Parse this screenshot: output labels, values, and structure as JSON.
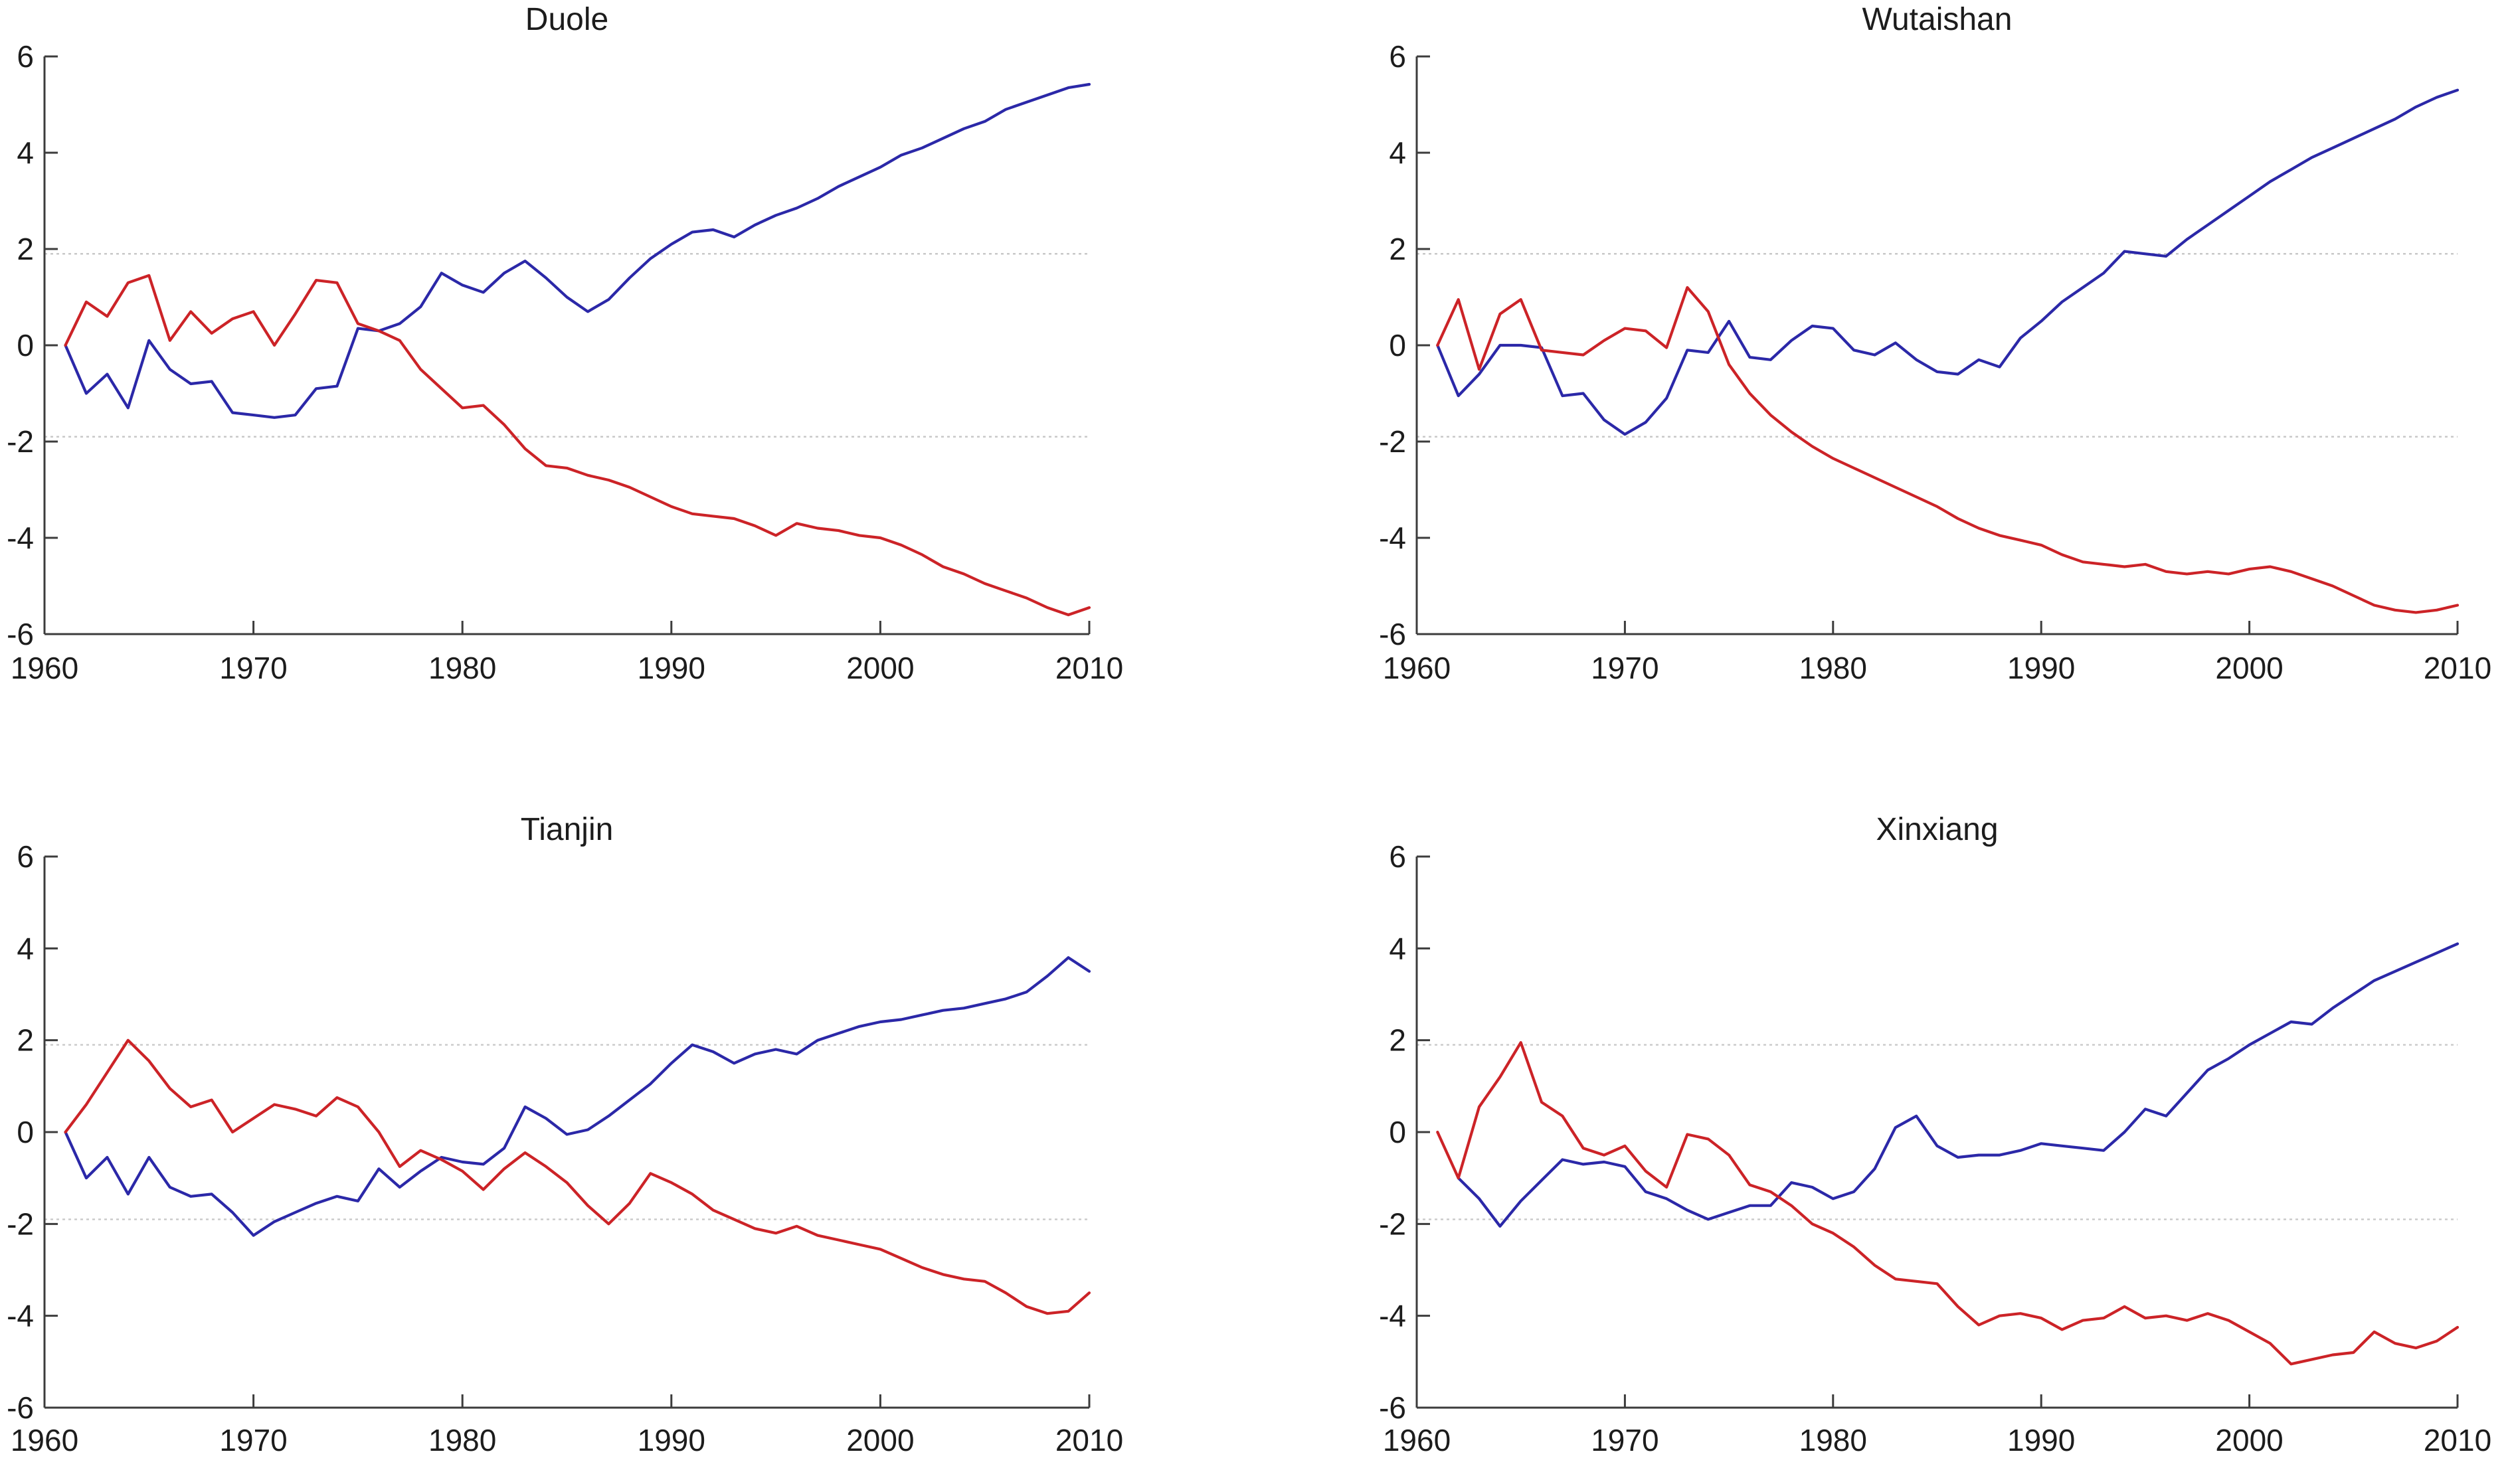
{
  "theme": {
    "background": "#ffffff",
    "blue": "#2b28a8",
    "red": "#cc2327",
    "grid_color": "#c9c9c9",
    "axis_color": "#3c3c3c",
    "text_color": "#1c1c1c"
  },
  "axes": {
    "x_tick_labels": [
      "1960",
      "1970",
      "1980",
      "1990",
      "2000",
      "2010"
    ],
    "x_tick_values": [
      1960,
      1970,
      1980,
      1990,
      2000,
      2010
    ],
    "y_tick_labels": [
      "-6",
      "-4",
      "-2",
      "0",
      "2",
      "4",
      "6"
    ],
    "y_tick_values": [
      -6,
      -4,
      -2,
      0,
      2,
      4,
      6
    ],
    "xlim": [
      1960,
      2010
    ],
    "ylim": [
      -6,
      6
    ],
    "reference_lines": [
      1.9,
      -1.9
    ]
  },
  "chart_data": [
    {
      "type": "line",
      "title": "Duole",
      "xlabel": "",
      "ylabel": "",
      "xlim": [
        1960,
        2010
      ],
      "ylim": [
        -6,
        6
      ],
      "grid": false,
      "reference_lines": [
        1.9,
        -1.9
      ],
      "x": [
        1961,
        1962,
        1963,
        1964,
        1965,
        1966,
        1967,
        1968,
        1969,
        1970,
        1971,
        1972,
        1973,
        1974,
        1975,
        1976,
        1977,
        1978,
        1979,
        1980,
        1981,
        1982,
        1983,
        1984,
        1985,
        1986,
        1987,
        1988,
        1989,
        1990,
        1991,
        1992,
        1993,
        1994,
        1995,
        1996,
        1997,
        1998,
        1999,
        2000,
        2001,
        2002,
        2003,
        2004,
        2005,
        2006,
        2007,
        2008,
        2009,
        2010
      ],
      "series": [
        {
          "name": "blue",
          "color": "#2b28a8",
          "values": [
            0,
            -1.0,
            -0.6,
            -1.3,
            0.1,
            -0.5,
            -0.8,
            -0.75,
            -1.4,
            -1.45,
            -1.5,
            -1.45,
            -0.9,
            -0.85,
            0.35,
            0.3,
            0.45,
            0.8,
            1.5,
            1.25,
            1.1,
            1.5,
            1.75,
            1.4,
            1.0,
            0.7,
            0.95,
            1.4,
            1.8,
            2.1,
            2.35,
            2.4,
            2.25,
            2.5,
            2.7,
            2.85,
            3.05,
            3.3,
            3.5,
            3.7,
            3.95,
            4.1,
            4.3,
            4.5,
            4.65,
            4.9,
            5.05,
            5.2,
            5.35,
            5.42
          ]
        },
        {
          "name": "red",
          "color": "#cc2327",
          "values": [
            0,
            0.9,
            0.6,
            1.3,
            1.45,
            0.1,
            0.7,
            0.25,
            0.55,
            0.7,
            0.0,
            0.65,
            1.35,
            1.3,
            0.45,
            0.3,
            0.1,
            -0.5,
            -0.9,
            -1.3,
            -1.25,
            -1.65,
            -2.15,
            -2.5,
            -2.55,
            -2.7,
            -2.8,
            -2.95,
            -3.15,
            -3.35,
            -3.5,
            -3.55,
            -3.6,
            -3.75,
            -3.95,
            -3.7,
            -3.8,
            -3.85,
            -3.95,
            -4.0,
            -4.15,
            -4.35,
            -4.6,
            -4.75,
            -4.95,
            -5.1,
            -5.25,
            -5.45,
            -5.6,
            -5.45
          ]
        }
      ]
    },
    {
      "type": "line",
      "title": "Wutaishan",
      "xlabel": "",
      "ylabel": "",
      "xlim": [
        1960,
        2010
      ],
      "ylim": [
        -6,
        6
      ],
      "grid": false,
      "reference_lines": [
        1.9,
        -1.9
      ],
      "x": [
        1961,
        1962,
        1963,
        1964,
        1965,
        1966,
        1967,
        1968,
        1969,
        1970,
        1971,
        1972,
        1973,
        1974,
        1975,
        1976,
        1977,
        1978,
        1979,
        1980,
        1981,
        1982,
        1983,
        1984,
        1985,
        1986,
        1987,
        1988,
        1989,
        1990,
        1991,
        1992,
        1993,
        1994,
        1995,
        1996,
        1997,
        1998,
        1999,
        2000,
        2001,
        2002,
        2003,
        2004,
        2005,
        2006,
        2007,
        2008,
        2009,
        2010
      ],
      "series": [
        {
          "name": "blue",
          "color": "#2b28a8",
          "values": [
            0,
            -1.05,
            -0.6,
            0.0,
            0.0,
            -0.05,
            -1.05,
            -1.0,
            -1.55,
            -1.85,
            -1.6,
            -1.1,
            -0.1,
            -0.15,
            0.5,
            -0.25,
            -0.3,
            0.1,
            0.4,
            0.35,
            -0.1,
            -0.2,
            0.05,
            -0.3,
            -0.55,
            -0.6,
            -0.3,
            -0.45,
            0.15,
            0.5,
            0.9,
            1.2,
            1.5,
            1.95,
            1.9,
            1.85,
            2.2,
            2.5,
            2.8,
            3.1,
            3.4,
            3.65,
            3.9,
            4.1,
            4.3,
            4.5,
            4.7,
            4.95,
            5.15,
            5.3
          ]
        },
        {
          "name": "red",
          "color": "#cc2327",
          "values": [
            0,
            0.95,
            -0.5,
            0.65,
            0.95,
            -0.1,
            -0.15,
            -0.2,
            0.1,
            0.35,
            0.3,
            -0.05,
            1.2,
            0.7,
            -0.4,
            -1.0,
            -1.45,
            -1.8,
            -2.1,
            -2.35,
            -2.55,
            -2.75,
            -2.95,
            -3.15,
            -3.35,
            -3.6,
            -3.8,
            -3.95,
            -4.05,
            -4.15,
            -4.35,
            -4.5,
            -4.55,
            -4.6,
            -4.55,
            -4.7,
            -4.75,
            -4.7,
            -4.75,
            -4.65,
            -4.6,
            -4.7,
            -4.85,
            -5.0,
            -5.2,
            -5.4,
            -5.5,
            -5.55,
            -5.5,
            -5.4
          ]
        }
      ]
    },
    {
      "type": "line",
      "title": "Tianjin",
      "xlabel": "",
      "ylabel": "",
      "xlim": [
        1960,
        2010
      ],
      "ylim": [
        -6,
        6
      ],
      "grid": false,
      "reference_lines": [
        1.9,
        -1.9
      ],
      "x": [
        1961,
        1962,
        1963,
        1964,
        1965,
        1966,
        1967,
        1968,
        1969,
        1970,
        1971,
        1972,
        1973,
        1974,
        1975,
        1976,
        1977,
        1978,
        1979,
        1980,
        1981,
        1982,
        1983,
        1984,
        1985,
        1986,
        1987,
        1988,
        1989,
        1990,
        1991,
        1992,
        1993,
        1994,
        1995,
        1996,
        1997,
        1998,
        1999,
        2000,
        2001,
        2002,
        2003,
        2004,
        2005,
        2006,
        2007,
        2008,
        2009,
        2010
      ],
      "series": [
        {
          "name": "blue",
          "color": "#2b28a8",
          "values": [
            0,
            -1.0,
            -0.55,
            -1.35,
            -0.55,
            -1.2,
            -1.4,
            -1.35,
            -1.75,
            -2.25,
            -1.95,
            -1.75,
            -1.55,
            -1.4,
            -1.5,
            -0.8,
            -1.2,
            -0.85,
            -0.55,
            -0.65,
            -0.7,
            -0.35,
            0.55,
            0.3,
            -0.05,
            0.05,
            0.35,
            0.7,
            1.05,
            1.5,
            1.9,
            1.75,
            1.5,
            1.7,
            1.8,
            1.7,
            2.0,
            2.15,
            2.3,
            2.4,
            2.45,
            2.55,
            2.65,
            2.7,
            2.8,
            2.9,
            3.05,
            3.4,
            3.8,
            3.5
          ]
        },
        {
          "name": "red",
          "color": "#cc2327",
          "values": [
            0,
            0.6,
            1.3,
            2.0,
            1.55,
            0.95,
            0.55,
            0.7,
            0.0,
            0.3,
            0.6,
            0.5,
            0.35,
            0.75,
            0.55,
            0.0,
            -0.75,
            -0.4,
            -0.6,
            -0.85,
            -1.25,
            -0.8,
            -0.45,
            -0.75,
            -1.1,
            -1.6,
            -2.0,
            -1.55,
            -0.9,
            -1.1,
            -1.35,
            -1.7,
            -1.9,
            -2.1,
            -2.2,
            -2.05,
            -2.25,
            -2.35,
            -2.45,
            -2.55,
            -2.75,
            -2.95,
            -3.1,
            -3.2,
            -3.25,
            -3.5,
            -3.8,
            -3.95,
            -3.9,
            -3.5
          ]
        }
      ]
    },
    {
      "type": "line",
      "title": "Xinxiang",
      "xlabel": "",
      "ylabel": "",
      "xlim": [
        1960,
        2010
      ],
      "ylim": [
        -6,
        6
      ],
      "grid": false,
      "reference_lines": [
        1.9,
        -1.9
      ],
      "x": [
        1961,
        1962,
        1963,
        1964,
        1965,
        1966,
        1967,
        1968,
        1969,
        1970,
        1971,
        1972,
        1973,
        1974,
        1975,
        1976,
        1977,
        1978,
        1979,
        1980,
        1981,
        1982,
        1983,
        1984,
        1985,
        1986,
        1987,
        1988,
        1989,
        1990,
        1991,
        1992,
        1993,
        1994,
        1995,
        1996,
        1997,
        1998,
        1999,
        2000,
        2001,
        2002,
        2003,
        2004,
        2005,
        2006,
        2007,
        2008,
        2009,
        2010
      ],
      "series": [
        {
          "name": "blue",
          "color": "#2b28a8",
          "values": [
            null,
            -1.0,
            -1.45,
            -2.05,
            -1.5,
            -1.05,
            -0.6,
            -0.7,
            -0.65,
            -0.75,
            -1.3,
            -1.45,
            -1.7,
            -1.9,
            -1.75,
            -1.6,
            -1.6,
            -1.1,
            -1.2,
            -1.45,
            -1.3,
            -0.8,
            0.1,
            0.35,
            -0.3,
            -0.55,
            -0.5,
            -0.5,
            -0.4,
            -0.25,
            -0.3,
            -0.35,
            -0.4,
            0.0,
            0.5,
            0.35,
            0.85,
            1.35,
            1.6,
            1.9,
            2.15,
            2.4,
            2.35,
            2.7,
            3.0,
            3.3,
            3.5,
            3.7,
            3.9,
            4.1
          ]
        },
        {
          "name": "red",
          "color": "#cc2327",
          "values": [
            0,
            -1.0,
            0.55,
            1.2,
            1.95,
            0.65,
            0.35,
            -0.35,
            -0.5,
            -0.3,
            -0.85,
            -1.2,
            -0.05,
            -0.15,
            -0.5,
            -1.15,
            -1.3,
            -1.6,
            -2.0,
            -2.2,
            -2.5,
            -2.9,
            -3.2,
            -3.25,
            -3.3,
            -3.8,
            -4.2,
            -4.0,
            -3.95,
            -4.05,
            -4.3,
            -4.1,
            -4.05,
            -3.8,
            -4.05,
            -4.0,
            -4.1,
            -3.95,
            -4.1,
            -4.35,
            -4.6,
            -5.05,
            -4.95,
            -4.85,
            -4.8,
            -4.35,
            -4.6,
            -4.7,
            -4.55,
            -4.25
          ]
        }
      ]
    }
  ]
}
